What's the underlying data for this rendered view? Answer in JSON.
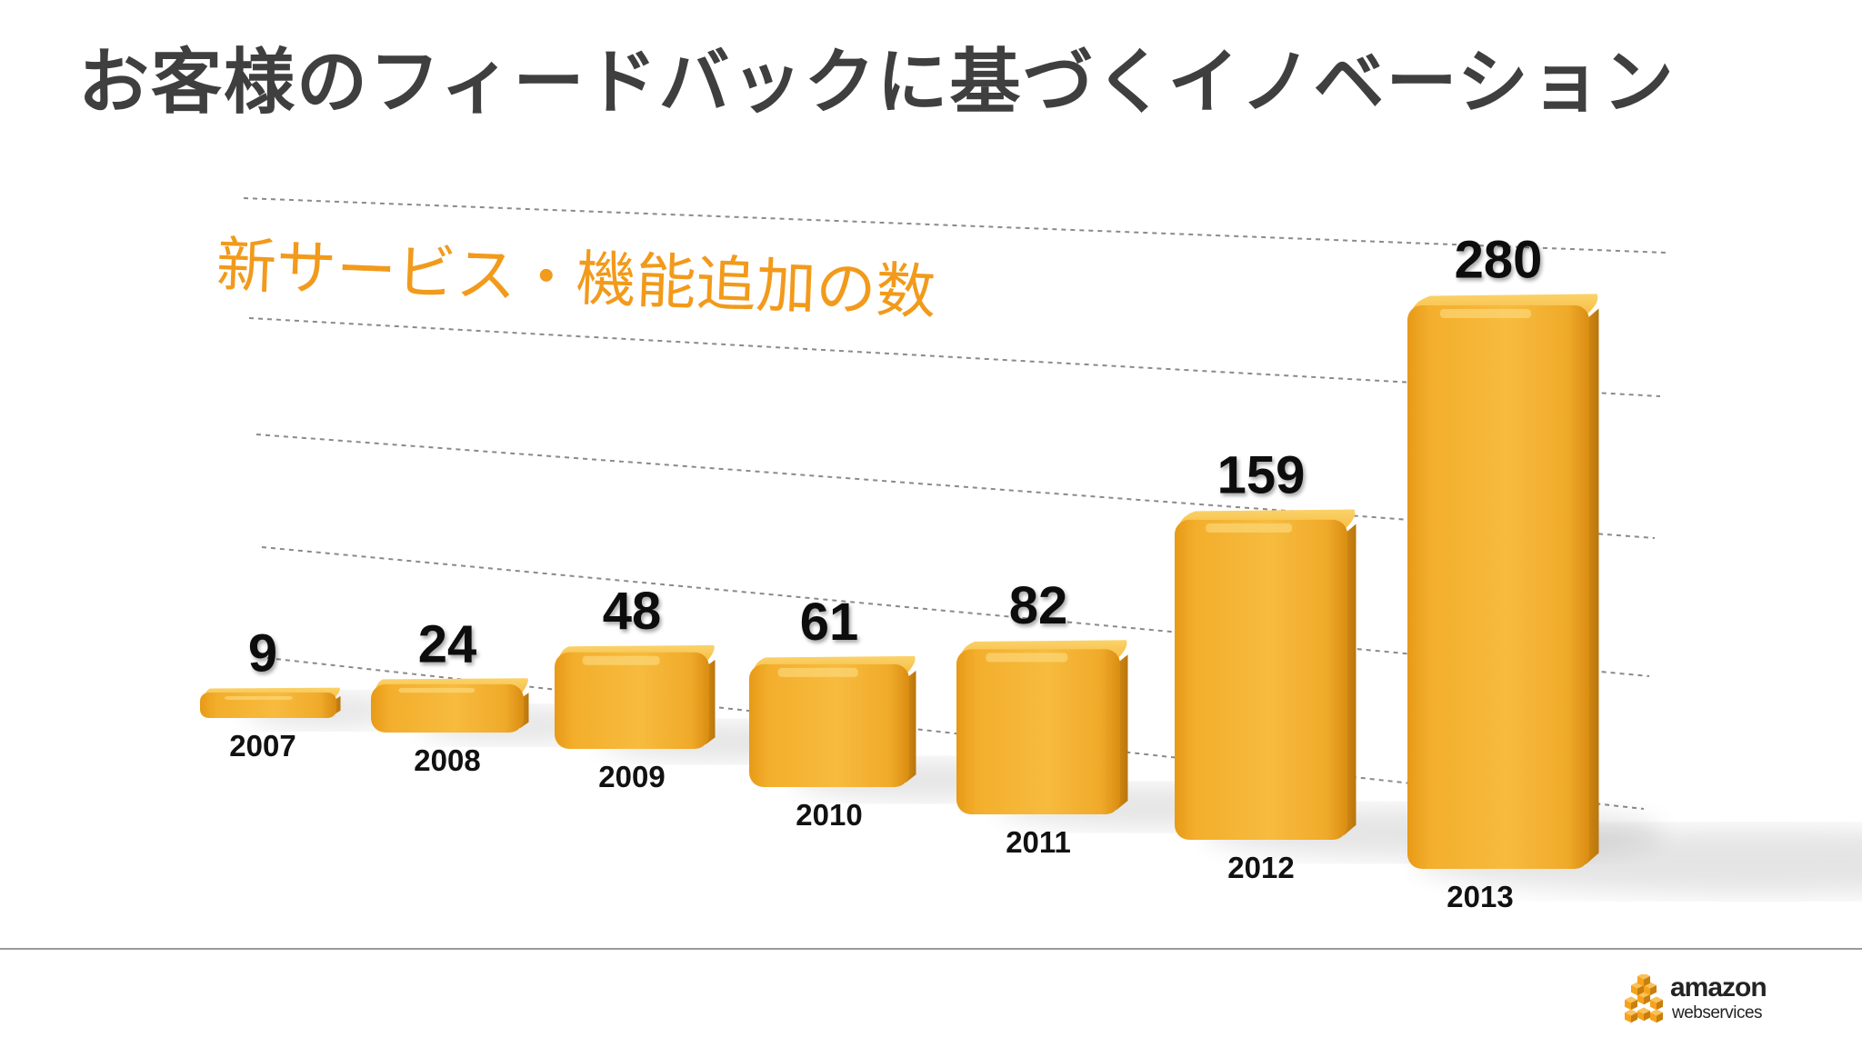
{
  "slide": {
    "title": "お客様のフィードバックに基づくイノベーション"
  },
  "chart_data": {
    "type": "bar",
    "title": "新サービス・機能追加の数",
    "categories": [
      "2007",
      "2008",
      "2009",
      "2010",
      "2011",
      "2012",
      "2013"
    ],
    "values": [
      9,
      24,
      48,
      61,
      82,
      159,
      280
    ],
    "xlabel": "",
    "ylabel": "",
    "grid": true,
    "bar_color": "#f5b335",
    "title_color": "#f29a1b"
  },
  "logo": {
    "line1": "amazon",
    "line2": "webservices",
    "cube_color": "#f7a21b"
  }
}
